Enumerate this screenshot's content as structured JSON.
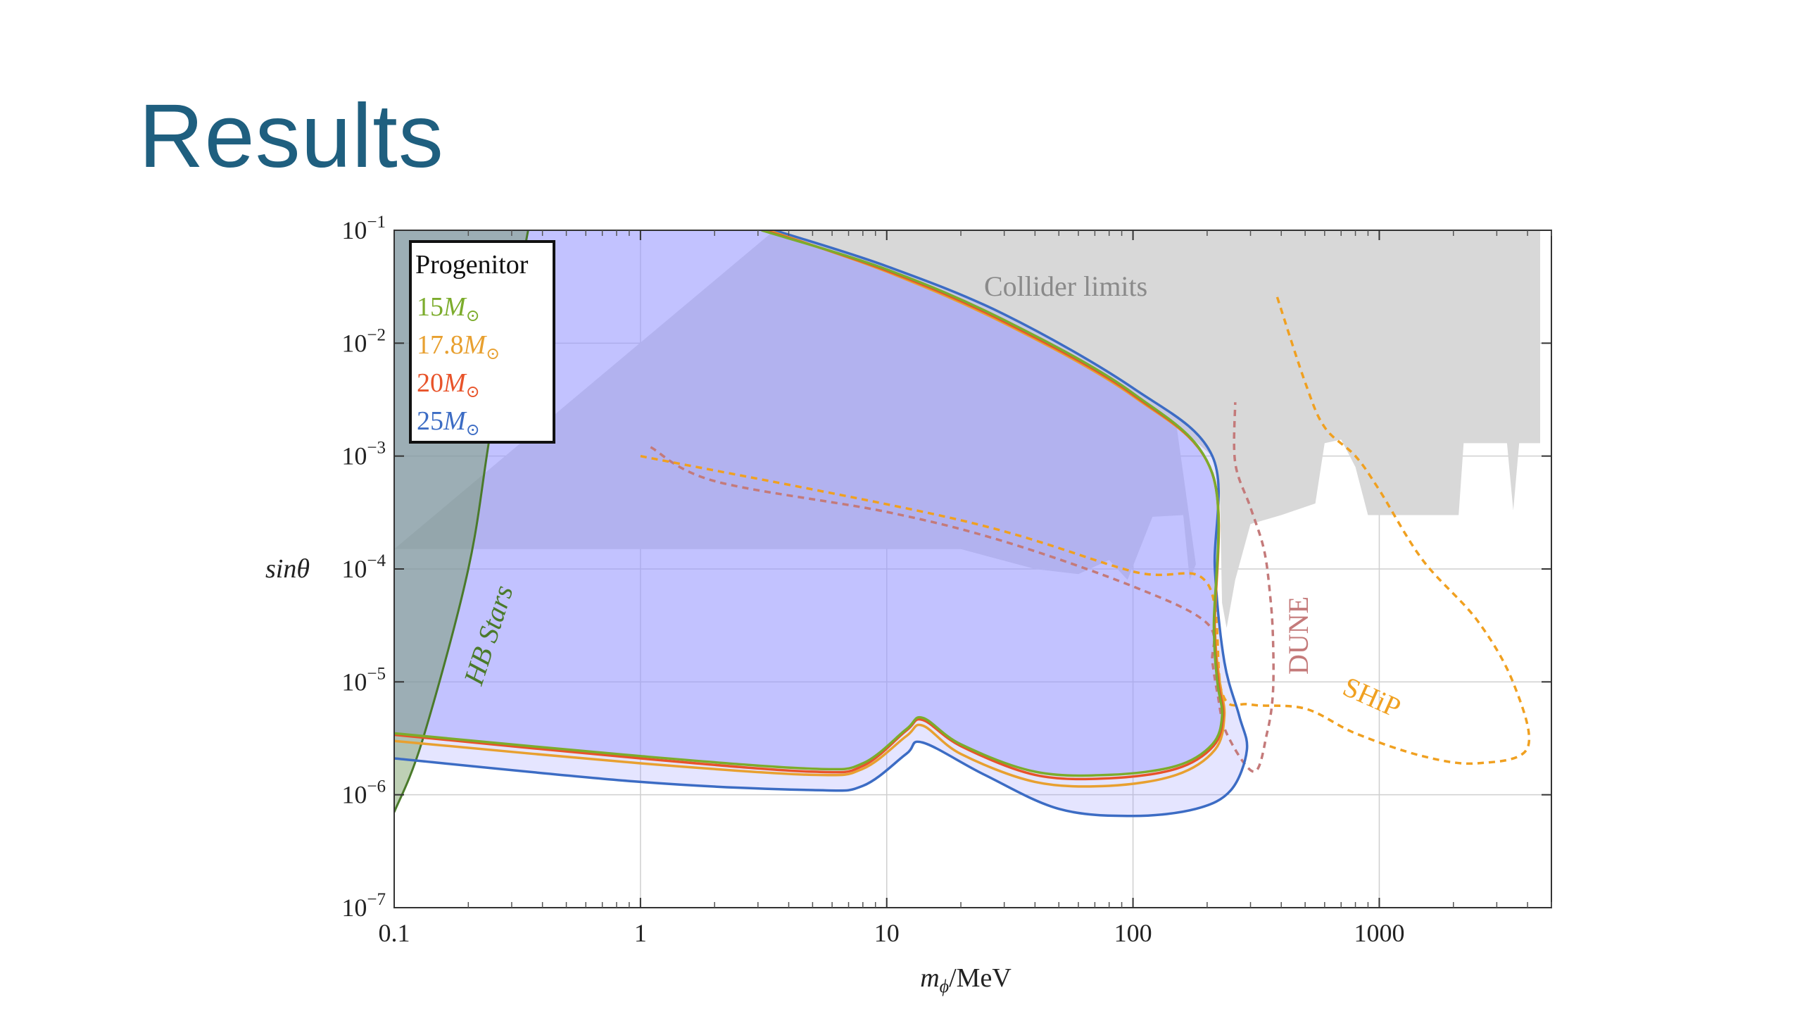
{
  "slide": {
    "title": "Results"
  },
  "chart_data": {
    "type": "area",
    "xscale": "log",
    "yscale": "log",
    "xlim": [
      0.1,
      5000
    ],
    "ylim": [
      1e-07,
      0.1
    ],
    "xlabel_main": "m",
    "xlabel_sub": "ϕ",
    "xlabel_unit": "/MeV",
    "ylabel": "sinθ",
    "x_ticks": [
      {
        "value": 0.1,
        "label": "0.1"
      },
      {
        "value": 1,
        "label": "1"
      },
      {
        "value": 10,
        "label": "10"
      },
      {
        "value": 100,
        "label": "100"
      },
      {
        "value": 1000,
        "label": "1000"
      }
    ],
    "y_ticks": [
      {
        "value": 0.1,
        "base": "10",
        "exp": "−1"
      },
      {
        "value": 0.01,
        "base": "10",
        "exp": "−2"
      },
      {
        "value": 0.001,
        "base": "10",
        "exp": "−3"
      },
      {
        "value": 0.0001,
        "base": "10",
        "exp": "−4"
      },
      {
        "value": 1e-05,
        "base": "10",
        "exp": "−5"
      },
      {
        "value": 1e-06,
        "base": "10",
        "exp": "−6"
      },
      {
        "value": 1e-07,
        "base": "10",
        "exp": "−7"
      }
    ],
    "grid": true,
    "legend": {
      "title": "Progenitor",
      "placement": "top-left",
      "entries": [
        {
          "num": "15",
          "sym": "M",
          "sun": "⊙",
          "color": "#7cac2c"
        },
        {
          "num": "17.8",
          "sym": "M",
          "sun": "⊙",
          "color": "#e8a030"
        },
        {
          "num": "20",
          "sym": "M",
          "sun": "⊙",
          "color": "#e8532a"
        },
        {
          "num": "25",
          "sym": "M",
          "sun": "⊙",
          "color": "#3c6cc4"
        }
      ]
    },
    "annotations": [
      {
        "key": "collider",
        "text": "Collider limits",
        "color": "#8a8a8a"
      },
      {
        "key": "hb",
        "text": "HB Stars",
        "color": "#4a7a2a"
      },
      {
        "key": "dune",
        "text": "DUNE",
        "color": "#c47a7a"
      },
      {
        "key": "ship",
        "text": "SHiP",
        "color": "#f0a020"
      }
    ],
    "series": [
      {
        "name": "15M⊙",
        "color": "#7cac2c",
        "fill": "rgba(150,150,255,0.45)",
        "points": [
          [
            3.1,
            0.1
          ],
          [
            10,
            0.045
          ],
          [
            30,
            0.016
          ],
          [
            100,
            0.0036
          ],
          [
            210,
            0.0007
          ],
          [
            213,
            3e-05
          ],
          [
            220,
            1e-05
          ],
          [
            230,
            5e-06
          ],
          [
            210,
            2.8e-06
          ],
          [
            150,
            1.8e-06
          ],
          [
            80,
            1.5e-06
          ],
          [
            40,
            1.6e-06
          ],
          [
            20,
            2.8e-06
          ],
          [
            14,
            4.8e-06
          ],
          [
            12,
            3.8e-06
          ],
          [
            8,
            1.9e-06
          ],
          [
            5,
            1.7e-06
          ],
          [
            1,
            2.2e-06
          ],
          [
            0.1,
            3.5e-06
          ]
        ]
      },
      {
        "name": "17.8M⊙",
        "color": "#e8a030",
        "points": [
          [
            3.3,
            0.1
          ],
          [
            10,
            0.043
          ],
          [
            30,
            0.015
          ],
          [
            100,
            0.0034
          ],
          [
            210,
            0.0007
          ],
          [
            215,
            3e-05
          ],
          [
            225,
            1e-05
          ],
          [
            235,
            5e-06
          ],
          [
            215,
            2.5e-06
          ],
          [
            150,
            1.5e-06
          ],
          [
            80,
            1.2e-06
          ],
          [
            40,
            1.3e-06
          ],
          [
            20,
            2.3e-06
          ],
          [
            14,
            4.1e-06
          ],
          [
            12,
            3.3e-06
          ],
          [
            8,
            1.7e-06
          ],
          [
            5,
            1.5e-06
          ],
          [
            1,
            1.9e-06
          ],
          [
            0.1,
            3e-06
          ]
        ]
      },
      {
        "name": "20M⊙",
        "color": "#e8532a",
        "points": [
          [
            3.2,
            0.1
          ],
          [
            10,
            0.044
          ],
          [
            30,
            0.0155
          ],
          [
            100,
            0.0035
          ],
          [
            210,
            0.0007
          ],
          [
            214,
            3e-05
          ],
          [
            222,
            1e-05
          ],
          [
            232,
            5e-06
          ],
          [
            212,
            2.7e-06
          ],
          [
            150,
            1.7e-06
          ],
          [
            80,
            1.4e-06
          ],
          [
            40,
            1.5e-06
          ],
          [
            20,
            2.7e-06
          ],
          [
            14,
            4.6e-06
          ],
          [
            12,
            3.7e-06
          ],
          [
            8,
            1.8e-06
          ],
          [
            5,
            1.6e-06
          ],
          [
            1,
            2.1e-06
          ],
          [
            0.1,
            3.4e-06
          ]
        ]
      },
      {
        "name": "25M⊙",
        "color": "#3c6cc4",
        "fill": "rgba(150,150,255,0.25)",
        "points": [
          [
            3.5,
            0.1
          ],
          [
            10,
            0.048
          ],
          [
            30,
            0.018
          ],
          [
            100,
            0.004
          ],
          [
            210,
            0.001
          ],
          [
            215,
            0.0001
          ],
          [
            235,
            1.5e-05
          ],
          [
            270,
            5e-06
          ],
          [
            290,
            2.5e-06
          ],
          [
            250,
            1.1e-06
          ],
          [
            180,
            7.5e-07
          ],
          [
            100,
            6.5e-07
          ],
          [
            50,
            7.5e-07
          ],
          [
            25,
            1.5e-06
          ],
          [
            14,
            2.9e-06
          ],
          [
            12,
            2.3e-06
          ],
          [
            8,
            1.2e-06
          ],
          [
            5,
            1.1e-06
          ],
          [
            1,
            1.3e-06
          ],
          [
            0.1,
            2.1e-06
          ]
        ]
      },
      {
        "name": "HB Stars",
        "color": "#4a7a2a",
        "points": [
          [
            0.1,
            7e-07
          ],
          [
            0.13,
            3e-06
          ],
          [
            0.2,
            0.0001
          ],
          [
            0.25,
            0.002
          ],
          [
            0.35,
            0.1
          ]
        ]
      },
      {
        "name": "Collider limits",
        "color": "#d8d8d8",
        "points": [
          [
            3.5,
            0.1
          ],
          [
            4500,
            0.1
          ],
          [
            4500,
            0.0013
          ],
          [
            3700,
            0.0013
          ],
          [
            3500,
            0.00033
          ],
          [
            3300,
            0.0013
          ],
          [
            2200,
            0.0013
          ],
          [
            2100,
            0.0003
          ],
          [
            900,
            0.0003
          ],
          [
            800,
            0.0008
          ],
          [
            700,
            0.0014
          ],
          [
            600,
            0.0013
          ],
          [
            550,
            0.00038
          ],
          [
            400,
            0.0003
          ],
          [
            300,
            0.00025
          ],
          [
            260,
            8e-05
          ],
          [
            240,
            3e-05
          ],
          [
            230,
            5e-05
          ],
          [
            225,
            0.00055
          ],
          [
            210,
            0.001
          ],
          [
            150,
            0.0019
          ],
          [
            180,
            0.00011
          ],
          [
            170,
            8e-05
          ],
          [
            160,
            0.0003
          ],
          [
            120,
            0.00029
          ],
          [
            95,
            8e-05
          ],
          [
            80,
            0.00012
          ],
          [
            60,
            9e-05
          ],
          [
            40,
            0.0001
          ],
          [
            20,
            0.00015
          ],
          [
            0.1,
            0.00015
          ]
        ]
      },
      {
        "name": "SHiP",
        "color": "#f0a020",
        "points": [
          [
            1,
            0.001
          ],
          [
            20,
            0.00027
          ],
          [
            100,
            9.5e-05
          ],
          [
            200,
            7.5e-05
          ],
          [
            230,
            8e-06
          ],
          [
            300,
            6.3e-06
          ],
          [
            500,
            5.8e-06
          ],
          [
            800,
            3.5e-06
          ],
          [
            1500,
            2.2e-06
          ],
          [
            2500,
            1.9e-06
          ],
          [
            4000,
            2.6e-06
          ],
          [
            3500,
            9.8e-06
          ],
          [
            2500,
            3.5e-05
          ],
          [
            1500,
            0.00012
          ],
          [
            1000,
            0.0005
          ],
          [
            800,
            0.001
          ],
          [
            600,
            0.0018
          ],
          [
            500,
            0.0045
          ],
          [
            380,
            0.028
          ]
        ]
      },
      {
        "name": "DUNE",
        "color": "#c47a7a",
        "points": [
          [
            1.1,
            0.0012
          ],
          [
            2,
            0.0006
          ],
          [
            10,
            0.00032
          ],
          [
            30,
            0.000175
          ],
          [
            100,
            7e-05
          ],
          [
            200,
            3.3e-05
          ],
          [
            210,
            1.5e-05
          ],
          [
            220,
            8e-06
          ],
          [
            240,
            3.5e-06
          ],
          [
            310,
            1.6e-06
          ],
          [
            350,
            3.5e-06
          ],
          [
            370,
            8e-06
          ],
          [
            370,
            2.5e-05
          ],
          [
            360,
            6e-05
          ],
          [
            340,
            0.00015
          ],
          [
            300,
            0.00035
          ],
          [
            260,
            0.00087
          ],
          [
            260,
            0.003
          ]
        ]
      }
    ]
  }
}
